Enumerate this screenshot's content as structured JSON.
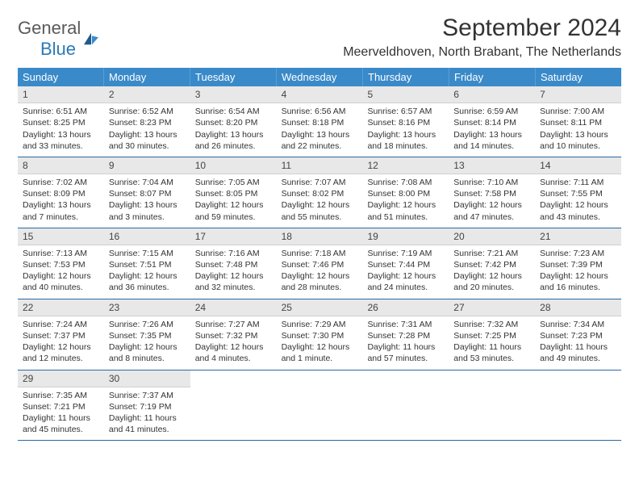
{
  "logo": {
    "text1": "General",
    "text2": "Blue"
  },
  "header": {
    "title": "September 2024",
    "subtitle": "Meerveldhoven, North Brabant, The Netherlands"
  },
  "colors": {
    "header_bg": "#3a8ac9",
    "header_text": "#ffffff",
    "daynum_bg": "#e8e8e8",
    "week_border": "#2a6aa0",
    "logo_gray": "#5a5a5a",
    "logo_blue": "#2a7ab8",
    "body_text": "#333333"
  },
  "days_of_week": [
    "Sunday",
    "Monday",
    "Tuesday",
    "Wednesday",
    "Thursday",
    "Friday",
    "Saturday"
  ],
  "days": [
    {
      "n": "1",
      "sunrise": "6:51 AM",
      "sunset": "8:25 PM",
      "day_h": "13",
      "day_m": "33"
    },
    {
      "n": "2",
      "sunrise": "6:52 AM",
      "sunset": "8:23 PM",
      "day_h": "13",
      "day_m": "30"
    },
    {
      "n": "3",
      "sunrise": "6:54 AM",
      "sunset": "8:20 PM",
      "day_h": "13",
      "day_m": "26"
    },
    {
      "n": "4",
      "sunrise": "6:56 AM",
      "sunset": "8:18 PM",
      "day_h": "13",
      "day_m": "22"
    },
    {
      "n": "5",
      "sunrise": "6:57 AM",
      "sunset": "8:16 PM",
      "day_h": "13",
      "day_m": "18"
    },
    {
      "n": "6",
      "sunrise": "6:59 AM",
      "sunset": "8:14 PM",
      "day_h": "13",
      "day_m": "14"
    },
    {
      "n": "7",
      "sunrise": "7:00 AM",
      "sunset": "8:11 PM",
      "day_h": "13",
      "day_m": "10"
    },
    {
      "n": "8",
      "sunrise": "7:02 AM",
      "sunset": "8:09 PM",
      "day_h": "13",
      "day_m": "7"
    },
    {
      "n": "9",
      "sunrise": "7:04 AM",
      "sunset": "8:07 PM",
      "day_h": "13",
      "day_m": "3"
    },
    {
      "n": "10",
      "sunrise": "7:05 AM",
      "sunset": "8:05 PM",
      "day_h": "12",
      "day_m": "59"
    },
    {
      "n": "11",
      "sunrise": "7:07 AM",
      "sunset": "8:02 PM",
      "day_h": "12",
      "day_m": "55"
    },
    {
      "n": "12",
      "sunrise": "7:08 AM",
      "sunset": "8:00 PM",
      "day_h": "12",
      "day_m": "51"
    },
    {
      "n": "13",
      "sunrise": "7:10 AM",
      "sunset": "7:58 PM",
      "day_h": "12",
      "day_m": "47"
    },
    {
      "n": "14",
      "sunrise": "7:11 AM",
      "sunset": "7:55 PM",
      "day_h": "12",
      "day_m": "43"
    },
    {
      "n": "15",
      "sunrise": "7:13 AM",
      "sunset": "7:53 PM",
      "day_h": "12",
      "day_m": "40"
    },
    {
      "n": "16",
      "sunrise": "7:15 AM",
      "sunset": "7:51 PM",
      "day_h": "12",
      "day_m": "36"
    },
    {
      "n": "17",
      "sunrise": "7:16 AM",
      "sunset": "7:48 PM",
      "day_h": "12",
      "day_m": "32"
    },
    {
      "n": "18",
      "sunrise": "7:18 AM",
      "sunset": "7:46 PM",
      "day_h": "12",
      "day_m": "28"
    },
    {
      "n": "19",
      "sunrise": "7:19 AM",
      "sunset": "7:44 PM",
      "day_h": "12",
      "day_m": "24"
    },
    {
      "n": "20",
      "sunrise": "7:21 AM",
      "sunset": "7:42 PM",
      "day_h": "12",
      "day_m": "20"
    },
    {
      "n": "21",
      "sunrise": "7:23 AM",
      "sunset": "7:39 PM",
      "day_h": "12",
      "day_m": "16"
    },
    {
      "n": "22",
      "sunrise": "7:24 AM",
      "sunset": "7:37 PM",
      "day_h": "12",
      "day_m": "12"
    },
    {
      "n": "23",
      "sunrise": "7:26 AM",
      "sunset": "7:35 PM",
      "day_h": "12",
      "day_m": "8"
    },
    {
      "n": "24",
      "sunrise": "7:27 AM",
      "sunset": "7:32 PM",
      "day_h": "12",
      "day_m": "4"
    },
    {
      "n": "25",
      "sunrise": "7:29 AM",
      "sunset": "7:30 PM",
      "day_h": "12",
      "day_m": "1"
    },
    {
      "n": "26",
      "sunrise": "7:31 AM",
      "sunset": "7:28 PM",
      "day_h": "11",
      "day_m": "57"
    },
    {
      "n": "27",
      "sunrise": "7:32 AM",
      "sunset": "7:25 PM",
      "day_h": "11",
      "day_m": "53"
    },
    {
      "n": "28",
      "sunrise": "7:34 AM",
      "sunset": "7:23 PM",
      "day_h": "11",
      "day_m": "49"
    },
    {
      "n": "29",
      "sunrise": "7:35 AM",
      "sunset": "7:21 PM",
      "day_h": "11",
      "day_m": "45"
    },
    {
      "n": "30",
      "sunrise": "7:37 AM",
      "sunset": "7:19 PM",
      "day_h": "11",
      "day_m": "41"
    }
  ],
  "labels": {
    "sunrise": "Sunrise:",
    "sunset": "Sunset:",
    "daylight": "Daylight:",
    "hours_word": "hours",
    "and_word": "and",
    "min_word_1": "minute.",
    "min_word": "minutes."
  }
}
